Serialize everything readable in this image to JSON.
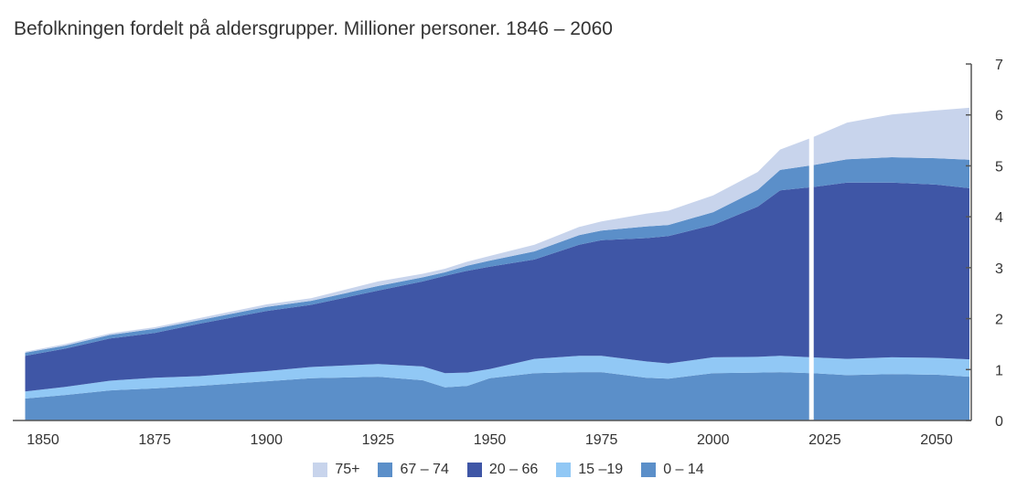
{
  "chart_data": {
    "type": "area",
    "stacked": true,
    "title": "Befolkningen fordelt på aldersgrupper. Millioner personer. 1846 – 2060",
    "xlabel": "",
    "ylabel": "",
    "xlim": [
      1846,
      2060
    ],
    "ylim": [
      0,
      7
    ],
    "x_ticks": [
      "1850",
      "1875",
      "1900",
      "1925",
      "1950",
      "1975",
      "2000",
      "2025",
      "2050"
    ],
    "x_tick_values": [
      1850,
      1875,
      1900,
      1925,
      1950,
      1975,
      2000,
      2025,
      2050
    ],
    "y_ticks": [
      "0",
      "1",
      "2",
      "3",
      "4",
      "5",
      "6",
      "7"
    ],
    "y_tick_values": [
      0,
      1,
      2,
      3,
      4,
      5,
      6,
      7
    ],
    "y_axis_side": "right",
    "legend_position": "bottom",
    "divider_year": 2022,
    "x": [
      1846,
      1855,
      1865,
      1875,
      1885,
      1900,
      1910,
      1925,
      1935,
      1940,
      1945,
      1950,
      1960,
      1970,
      1975,
      1985,
      1990,
      2000,
      2010,
      2015,
      2022,
      2030,
      2040,
      2050,
      2060
    ],
    "series": [
      {
        "name": "0 – 14",
        "color": "#5b8fc9",
        "values": [
          0.43,
          0.5,
          0.59,
          0.63,
          0.68,
          0.77,
          0.83,
          0.86,
          0.79,
          0.65,
          0.68,
          0.83,
          0.93,
          0.95,
          0.95,
          0.84,
          0.82,
          0.93,
          0.94,
          0.95,
          0.93,
          0.89,
          0.91,
          0.9,
          0.86
        ]
      },
      {
        "name": "15 –19",
        "color": "#91c8f5",
        "values": [
          0.14,
          0.16,
          0.19,
          0.21,
          0.19,
          0.2,
          0.22,
          0.25,
          0.27,
          0.28,
          0.26,
          0.18,
          0.28,
          0.32,
          0.32,
          0.32,
          0.3,
          0.31,
          0.31,
          0.32,
          0.31,
          0.32,
          0.33,
          0.33,
          0.34
        ]
      },
      {
        "name": "20 – 66",
        "color": "#3f56a6",
        "values": [
          0.7,
          0.75,
          0.83,
          0.88,
          1.03,
          1.18,
          1.22,
          1.44,
          1.67,
          1.91,
          2.0,
          2.01,
          1.95,
          2.18,
          2.27,
          2.42,
          2.5,
          2.6,
          2.95,
          3.25,
          3.34,
          3.46,
          3.43,
          3.4,
          3.36
        ]
      },
      {
        "name": "67 – 74",
        "color": "#5b8fc9",
        "values": [
          0.06,
          0.06,
          0.07,
          0.08,
          0.07,
          0.08,
          0.08,
          0.09,
          0.08,
          0.07,
          0.1,
          0.12,
          0.16,
          0.19,
          0.19,
          0.23,
          0.22,
          0.25,
          0.33,
          0.4,
          0.43,
          0.46,
          0.5,
          0.52,
          0.56
        ]
      },
      {
        "name": "75+",
        "color": "#c8d4ec",
        "values": [
          0.02,
          0.03,
          0.03,
          0.03,
          0.04,
          0.05,
          0.05,
          0.09,
          0.07,
          0.07,
          0.08,
          0.09,
          0.13,
          0.16,
          0.18,
          0.25,
          0.28,
          0.33,
          0.35,
          0.4,
          0.54,
          0.72,
          0.84,
          0.94,
          1.02
        ]
      }
    ],
    "legend": [
      "75+",
      "67 – 74",
      "20 – 66",
      "15 –19",
      "0 – 14"
    ]
  },
  "colors": {
    "axis": "#555555",
    "divider": "#ffffff"
  }
}
